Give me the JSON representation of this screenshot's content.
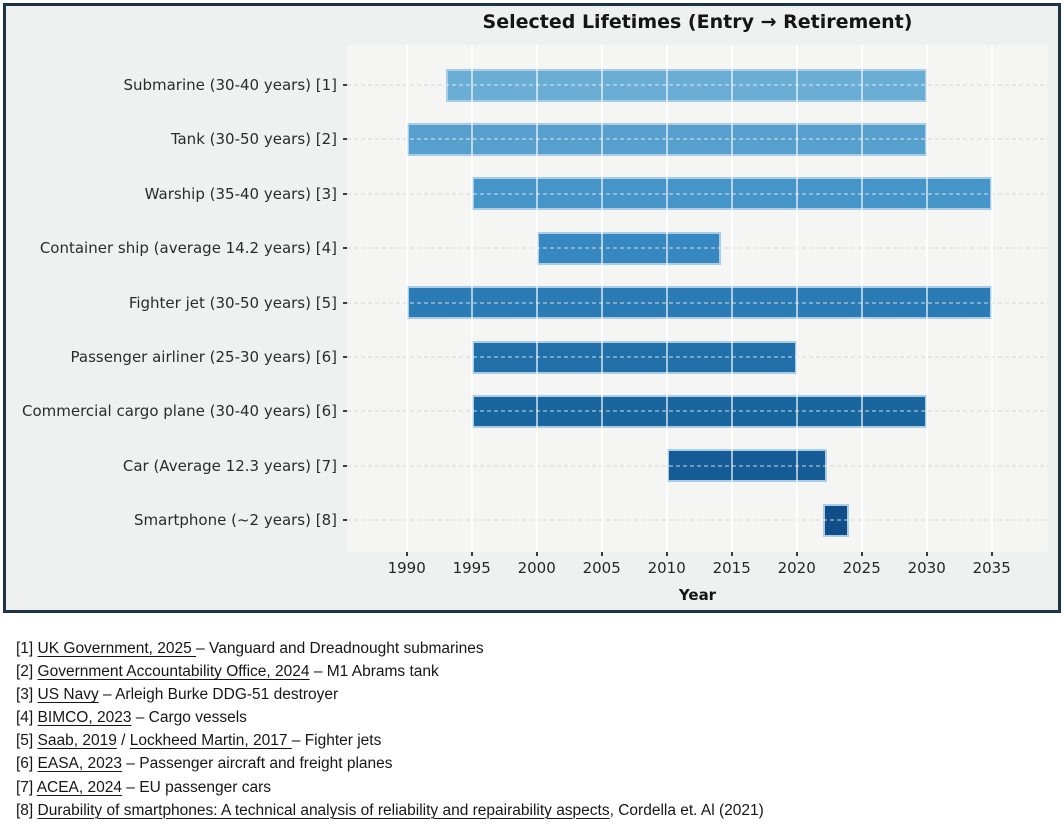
{
  "chart_data": {
    "type": "bar",
    "variant": "horizontal-range-gantt",
    "title": "Selected Lifetimes (Entry → Retirement)",
    "xlabel": "Year",
    "x_ticks": [
      1990,
      1995,
      2000,
      2005,
      2010,
      2015,
      2020,
      2025,
      2030,
      2035
    ],
    "xlim": [
      1985.4,
      2039.3
    ],
    "grid": "vertical solid white lines at 5-year ticks; horizontal dashed light-gray lines per row",
    "legend": "none",
    "bars": [
      {
        "label": "Submarine (30-40 years) [1]",
        "start": 1993,
        "end": 2030,
        "color": "#6aaed6"
      },
      {
        "label": "Tank (30-50 years) [2]",
        "start": 1990,
        "end": 2030,
        "color": "#57a0ce"
      },
      {
        "label": "Warship (35-40 years) [3]",
        "start": 1995,
        "end": 2035,
        "color": "#4695c8"
      },
      {
        "label": "Container ship (average 14.2 years) [4]",
        "start": 2000,
        "end": 2014.2,
        "color": "#3787c0"
      },
      {
        "label": "Fighter jet (30-50 years) [5]",
        "start": 1990,
        "end": 2035,
        "color": "#2b7bb4"
      },
      {
        "label": "Passenger airliner (25-30 years) [6]",
        "start": 1995,
        "end": 2020,
        "color": "#2270aa"
      },
      {
        "label": "Commercial cargo plane (30-40 years) [6]",
        "start": 1995,
        "end": 2030,
        "color": "#19669e"
      },
      {
        "label": "Car (Average 12.3 years) [7]",
        "start": 2010,
        "end": 2022.3,
        "color": "#155c96"
      },
      {
        "label": "Smartphone (~2 years) [8]",
        "start": 2022,
        "end": 2024,
        "color": "#114e88"
      }
    ],
    "bar_edge_color": "#a9cde6",
    "plot_bg": "#f5f6f4",
    "figure_bg": "#eff1f0",
    "frame_color": "#1d3447"
  },
  "footnotes": [
    {
      "marker": "[1]",
      "segments": [
        {
          "t": "UK Government, 2025 ",
          "link": true
        },
        {
          "t": "– Vanguard and Dreadnought submarines",
          "link": false
        }
      ]
    },
    {
      "marker": "[2]",
      "segments": [
        {
          "t": "Government Accountability Office, 2024",
          "link": true
        },
        {
          "t": " – M1 Abrams tank",
          "link": false
        }
      ]
    },
    {
      "marker": "[3]",
      "segments": [
        {
          "t": "US Navy",
          "link": true
        },
        {
          "t": " – Arleigh Burke DDG-51 destroyer",
          "link": false
        }
      ]
    },
    {
      "marker": "[4]",
      "segments": [
        {
          "t": "BIMCO, 2023",
          "link": true
        },
        {
          "t": " – Cargo vessels",
          "link": false
        }
      ]
    },
    {
      "marker": "[5]",
      "segments": [
        {
          "t": "Saab, 2019",
          "link": true
        },
        {
          "t": " / ",
          "link": false
        },
        {
          "t": "Lockheed Martin, 2017 ",
          "link": true
        },
        {
          "t": "– Fighter jets",
          "link": false
        }
      ]
    },
    {
      "marker": "[6]",
      "segments": [
        {
          "t": "EASA, 2023",
          "link": true
        },
        {
          "t": " – Passenger  aircraft and freight planes",
          "link": false
        }
      ]
    },
    {
      "marker": "[7]",
      "segments": [
        {
          "t": "ACEA, 2024",
          "link": true
        },
        {
          "t": " – EU passenger cars",
          "link": false
        }
      ]
    },
    {
      "marker": "[8]",
      "segments": [
        {
          "t": "Durability of smartphones: A technical analysis of reliability and repairability aspects",
          "link": true
        },
        {
          "t": ", Cordella et. Al (2021)",
          "link": false
        }
      ]
    }
  ]
}
